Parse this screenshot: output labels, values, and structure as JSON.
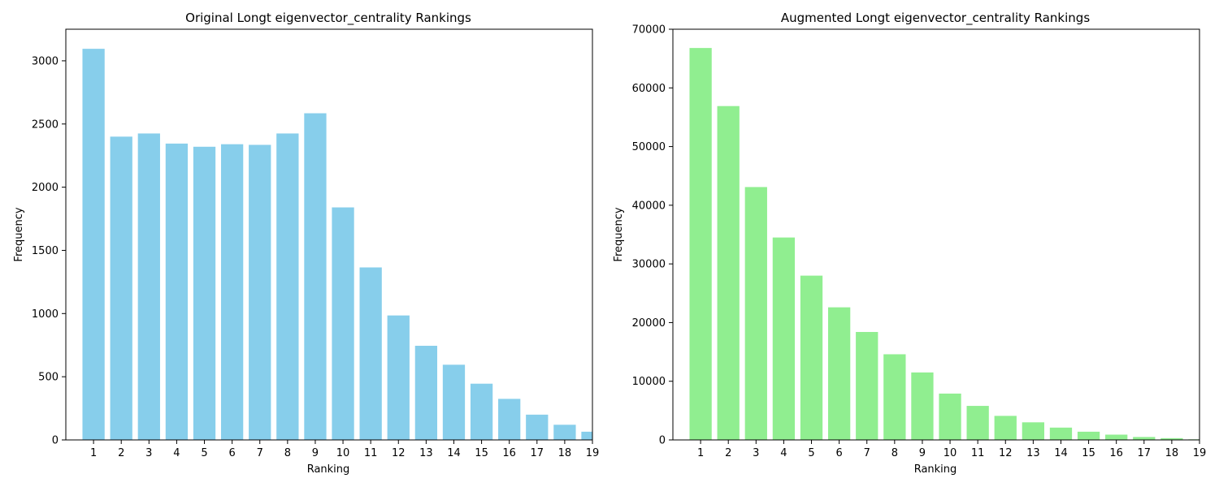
{
  "chart_data": [
    {
      "type": "bar",
      "title": "Original Longt eigenvector_centrality Rankings",
      "xlabel": "Ranking",
      "ylabel": "Frequency",
      "color": "#87ceeb",
      "categories": [
        1,
        2,
        3,
        4,
        5,
        6,
        7,
        8,
        9,
        10,
        11,
        12,
        13,
        14,
        15,
        16,
        17,
        18,
        19
      ],
      "values": [
        3095,
        2400,
        2425,
        2345,
        2320,
        2340,
        2335,
        2425,
        2585,
        1840,
        1365,
        985,
        745,
        595,
        445,
        325,
        200,
        120,
        65
      ],
      "ylim": [
        0,
        3250
      ],
      "xlim": [
        0,
        19
      ],
      "yticks": [
        0,
        500,
        1000,
        1500,
        2000,
        2500,
        3000
      ],
      "xticks": [
        1,
        2,
        3,
        4,
        5,
        6,
        7,
        8,
        9,
        10,
        11,
        12,
        13,
        14,
        15,
        16,
        17,
        18,
        19
      ],
      "grid": false,
      "legend": "none"
    },
    {
      "type": "bar",
      "title": "Augmented Longt eigenvector_centrality Rankings",
      "xlabel": "Ranking",
      "ylabel": "Frequency",
      "color": "#90ee90",
      "categories": [
        1,
        2,
        3,
        4,
        5,
        6,
        7,
        8,
        9,
        10,
        11,
        12,
        13,
        14,
        15,
        16,
        17,
        18,
        19
      ],
      "values": [
        66800,
        56900,
        43100,
        34500,
        28000,
        22600,
        18400,
        14600,
        11500,
        7900,
        5800,
        4100,
        3000,
        2100,
        1400,
        900,
        500,
        300,
        100
      ],
      "ylim": [
        0,
        70000
      ],
      "xlim": [
        0,
        19
      ],
      "yticks": [
        0,
        10000,
        20000,
        30000,
        40000,
        50000,
        60000,
        70000
      ],
      "xticks": [
        1,
        2,
        3,
        4,
        5,
        6,
        7,
        8,
        9,
        10,
        11,
        12,
        13,
        14,
        15,
        16,
        17,
        18,
        19
      ],
      "grid": false,
      "legend": "none"
    }
  ]
}
